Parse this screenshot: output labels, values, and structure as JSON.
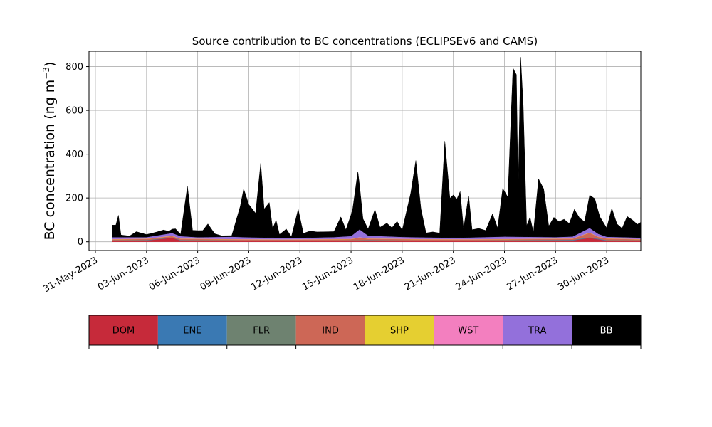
{
  "chart_data": {
    "type": "area",
    "title": "Source contribution to BC concentrations (ECLIPSEv6 and CAMS)",
    "xlabel": "",
    "ylabel_main": "BC concentration (ng m",
    "ylabel_sup": "−3",
    "ylabel_tail": ")",
    "stacked": true,
    "grid": true,
    "xlim": [
      "2023-05-31",
      "2023-07-02"
    ],
    "ylim": [
      -40,
      870
    ],
    "yticks": [
      0,
      200,
      400,
      600,
      800
    ],
    "xticks": [
      "2023-05-31",
      "2023-06-03",
      "2023-06-06",
      "2023-06-09",
      "2023-06-12",
      "2023-06-15",
      "2023-06-18",
      "2023-06-21",
      "2023-06-24",
      "2023-06-27",
      "2023-06-30"
    ],
    "xtick_labels": [
      "31-May-2023",
      "03-Jun-2023",
      "06-Jun-2023",
      "09-Jun-2023",
      "12-Jun-2023",
      "15-Jun-2023",
      "18-Jun-2023",
      "21-Jun-2023",
      "24-Jun-2023",
      "27-Jun-2023",
      "30-Jun-2023"
    ],
    "legend_placement": "bottom colorbar",
    "series": [
      {
        "name": "DOM",
        "color": "#c62a3a",
        "points": [
          [
            "2023-06-01",
            5
          ],
          [
            "2023-06-03",
            6
          ],
          [
            "2023-06-04.5",
            18
          ],
          [
            "2023-06-05",
            6
          ],
          [
            "2023-06-08",
            5
          ],
          [
            "2023-06-11",
            3
          ],
          [
            "2023-06-15",
            5
          ],
          [
            "2023-06-16",
            6
          ],
          [
            "2023-06-19",
            4
          ],
          [
            "2023-06-22",
            4
          ],
          [
            "2023-06-25",
            5
          ],
          [
            "2023-06-28",
            6
          ],
          [
            "2023-06-29",
            18
          ],
          [
            "2023-06-30",
            5
          ],
          [
            "2023-07-02",
            5
          ]
        ]
      },
      {
        "name": "ENE",
        "color": "#3a79b3",
        "points": [
          [
            "2023-06-01",
            1
          ],
          [
            "2023-06-15",
            1
          ],
          [
            "2023-06-29",
            2
          ],
          [
            "2023-07-02",
            1
          ]
        ]
      },
      {
        "name": "FLR",
        "color": "#6e8270",
        "points": [
          [
            "2023-06-01",
            1
          ],
          [
            "2023-06-15",
            1
          ],
          [
            "2023-07-02",
            1
          ]
        ]
      },
      {
        "name": "IND",
        "color": "#cd6756",
        "points": [
          [
            "2023-06-01",
            4
          ],
          [
            "2023-06-04.5",
            6
          ],
          [
            "2023-06-08",
            4
          ],
          [
            "2023-06-15",
            5
          ],
          [
            "2023-06-15.5",
            12
          ],
          [
            "2023-06-16",
            6
          ],
          [
            "2023-06-22",
            4
          ],
          [
            "2023-06-28",
            5
          ],
          [
            "2023-06-29",
            20
          ],
          [
            "2023-06-29.5",
            8
          ],
          [
            "2023-07-02",
            4
          ]
        ]
      },
      {
        "name": "SHP",
        "color": "#e5cf31",
        "points": [
          [
            "2023-06-01",
            1
          ],
          [
            "2023-06-15",
            1
          ],
          [
            "2023-07-02",
            1
          ]
        ]
      },
      {
        "name": "WST",
        "color": "#f37fbf",
        "points": [
          [
            "2023-06-01",
            1
          ],
          [
            "2023-06-15",
            1
          ],
          [
            "2023-07-02",
            1
          ]
        ]
      },
      {
        "name": "TRA",
        "color": "#9370db",
        "points": [
          [
            "2023-06-01",
            8
          ],
          [
            "2023-06-03",
            6
          ],
          [
            "2023-06-04.5",
            12
          ],
          [
            "2023-06-06",
            6
          ],
          [
            "2023-06-08",
            10
          ],
          [
            "2023-06-09",
            8
          ],
          [
            "2023-06-12",
            6
          ],
          [
            "2023-06-14",
            8
          ],
          [
            "2023-06-15",
            12
          ],
          [
            "2023-06-15.5",
            35
          ],
          [
            "2023-06-16",
            12
          ],
          [
            "2023-06-18",
            8
          ],
          [
            "2023-06-21",
            6
          ],
          [
            "2023-06-24",
            10
          ],
          [
            "2023-06-27",
            6
          ],
          [
            "2023-06-28",
            8
          ],
          [
            "2023-06-29",
            20
          ],
          [
            "2023-06-29.5",
            12
          ],
          [
            "2023-06-30",
            6
          ],
          [
            "2023-07-02",
            6
          ]
        ]
      },
      {
        "name": "BB",
        "color": "#000000",
        "points": [
          [
            "2023-06-01",
            55
          ],
          [
            "2023-06-01.2",
            55
          ],
          [
            "2023-06-01.35",
            100
          ],
          [
            "2023-06-01.5",
            10
          ],
          [
            "2023-06-02",
            5
          ],
          [
            "2023-06-02.4",
            25
          ],
          [
            "2023-06-03",
            12
          ],
          [
            "2023-06-03.5",
            15
          ],
          [
            "2023-06-04",
            20
          ],
          [
            "2023-06-04.3",
            10
          ],
          [
            "2023-06-04.7",
            25
          ],
          [
            "2023-06-05",
            8
          ],
          [
            "2023-06-05.4",
            230
          ],
          [
            "2023-06-05.7",
            30
          ],
          [
            "2023-06-06.3",
            30
          ],
          [
            "2023-06-06.6",
            60
          ],
          [
            "2023-06-07",
            15
          ],
          [
            "2023-06-07.4",
            5
          ],
          [
            "2023-06-08",
            5
          ],
          [
            "2023-06-08.5",
            140
          ],
          [
            "2023-06-08.7",
            220
          ],
          [
            "2023-06-09",
            150
          ],
          [
            "2023-06-09.4",
            110
          ],
          [
            "2023-06-09.7",
            340
          ],
          [
            "2023-06-09.9",
            130
          ],
          [
            "2023-06-10.2",
            160
          ],
          [
            "2023-06-10.4",
            40
          ],
          [
            "2023-06-10.6",
            80
          ],
          [
            "2023-06-10.8",
            15
          ],
          [
            "2023-06-11.2",
            40
          ],
          [
            "2023-06-11.5",
            5
          ],
          [
            "2023-06-11.9",
            130
          ],
          [
            "2023-06-12.2",
            20
          ],
          [
            "2023-06-12.6",
            30
          ],
          [
            "2023-06-13",
            25
          ],
          [
            "2023-06-14",
            25
          ],
          [
            "2023-06-14.4",
            90
          ],
          [
            "2023-06-14.7",
            30
          ],
          [
            "2023-06-15.1",
            120
          ],
          [
            "2023-06-15.4",
            270
          ],
          [
            "2023-06-15.7",
            60
          ],
          [
            "2023-06-16",
            30
          ],
          [
            "2023-06-16.4",
            120
          ],
          [
            "2023-06-16.7",
            40
          ],
          [
            "2023-06-17.1",
            60
          ],
          [
            "2023-06-17.4",
            40
          ],
          [
            "2023-06-17.7",
            70
          ],
          [
            "2023-06-18",
            30
          ],
          [
            "2023-06-18.5",
            200
          ],
          [
            "2023-06-18.8",
            350
          ],
          [
            "2023-06-19.1",
            130
          ],
          [
            "2023-06-19.4",
            20
          ],
          [
            "2023-06-19.8",
            25
          ],
          [
            "2023-06-20.2",
            20
          ],
          [
            "2023-06-20.5",
            440
          ],
          [
            "2023-06-20.8",
            180
          ],
          [
            "2023-06-21",
            195
          ],
          [
            "2023-06-21.2",
            175
          ],
          [
            "2023-06-21.4",
            210
          ],
          [
            "2023-06-21.6",
            40
          ],
          [
            "2023-06-21.9",
            190
          ],
          [
            "2023-06-22.1",
            35
          ],
          [
            "2023-06-22.5",
            40
          ],
          [
            "2023-06-22.9",
            30
          ],
          [
            "2023-06-23.3",
            105
          ],
          [
            "2023-06-23.6",
            40
          ],
          [
            "2023-06-23.9",
            220
          ],
          [
            "2023-06-24.2",
            180
          ],
          [
            "2023-06-24.5",
            770
          ],
          [
            "2023-06-24.7",
            740
          ],
          [
            "2023-06-24.8",
            200
          ],
          [
            "2023-06-24.95",
            820
          ],
          [
            "2023-06-25.1",
            600
          ],
          [
            "2023-06-25.3",
            50
          ],
          [
            "2023-06-25.5",
            90
          ],
          [
            "2023-06-25.7",
            20
          ],
          [
            "2023-06-26",
            265
          ],
          [
            "2023-06-26.3",
            220
          ],
          [
            "2023-06-26.6",
            50
          ],
          [
            "2023-06-26.9",
            90
          ],
          [
            "2023-06-27.2",
            70
          ],
          [
            "2023-06-27.5",
            80
          ],
          [
            "2023-06-27.8",
            60
          ],
          [
            "2023-06-28.1",
            120
          ],
          [
            "2023-06-28.4",
            70
          ],
          [
            "2023-06-28.7",
            40
          ],
          [
            "2023-06-29",
            150
          ],
          [
            "2023-06-29.3",
            150
          ],
          [
            "2023-06-29.6",
            80
          ],
          [
            "2023-06-30",
            40
          ],
          [
            "2023-06-30.3",
            130
          ],
          [
            "2023-06-30.6",
            60
          ],
          [
            "2023-06-30.9",
            40
          ],
          [
            "2023-07-01.2",
            95
          ],
          [
            "2023-07-01.5",
            80
          ],
          [
            "2023-07-01.8",
            60
          ],
          [
            "2023-07-02",
            70
          ]
        ]
      }
    ]
  }
}
